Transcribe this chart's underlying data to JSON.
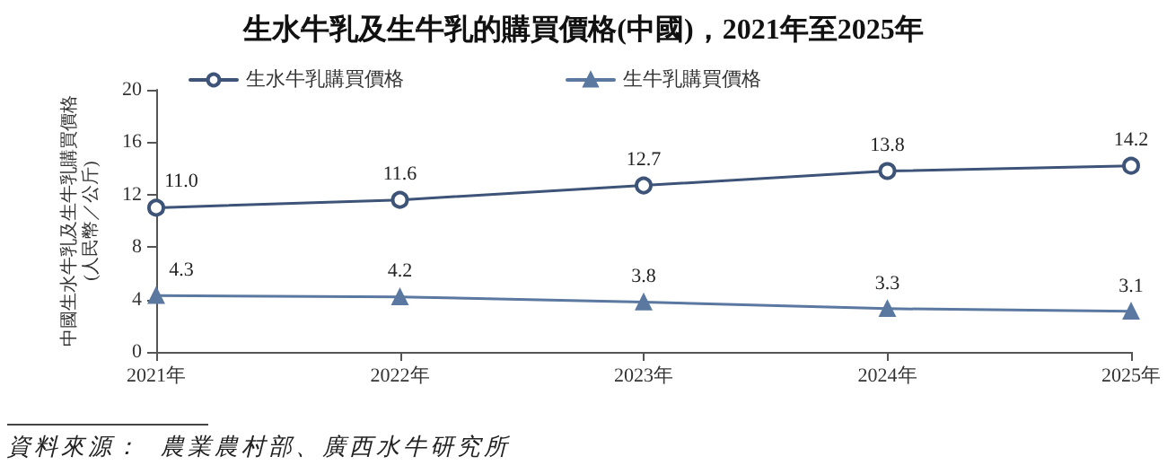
{
  "chart_data": {
    "type": "line",
    "title": "生水牛乳及生牛乳的購買價格(中國)，2021年至2025年",
    "ylabel": "中國生水牛乳及生牛乳購買價格\n(人民幣／公斤)",
    "categories": [
      "2021年",
      "2022年",
      "2023年",
      "2024年",
      "2025年"
    ],
    "series": [
      {
        "name": "生水牛乳購買價格",
        "color": "#3d5478",
        "marker": "circle",
        "values": [
          11.0,
          11.6,
          12.7,
          13.8,
          14.2
        ],
        "value_labels": [
          "11.0",
          "11.6",
          "12.7",
          "13.8",
          "14.2"
        ]
      },
      {
        "name": "生牛乳購買價格",
        "color": "#5a78a0",
        "marker": "triangle",
        "values": [
          4.3,
          4.2,
          3.8,
          3.3,
          3.1
        ]
      }
    ],
    "ylim": [
      0,
      20
    ],
    "yticks": [
      0,
      4,
      8,
      12,
      16,
      20
    ],
    "grid": false,
    "legend": "top left",
    "data_labels": true,
    "annotations": [
      "資料來源：  農業農村部、廣西水牛研究所"
    ]
  }
}
